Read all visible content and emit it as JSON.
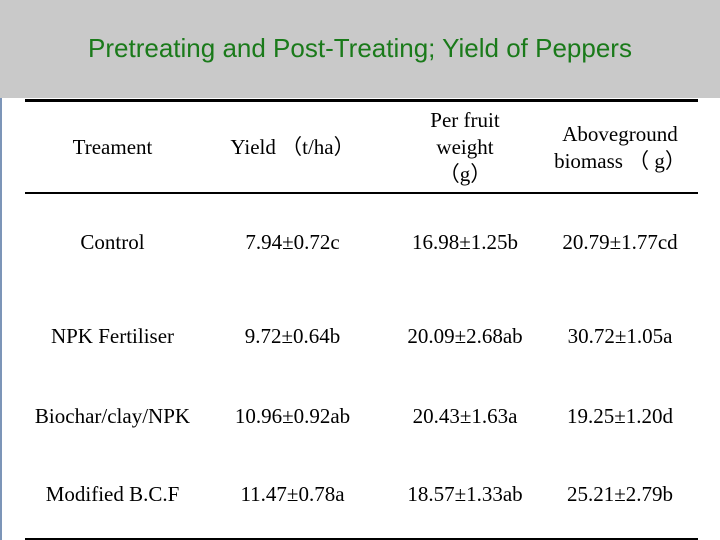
{
  "slide": {
    "title": "Pretreating and Post-Treating; Yield of Peppers"
  },
  "table": {
    "headers": [
      "Treament",
      "Yield （t/ha）",
      "Per fruit weight （g）",
      "Aboveground biomass （ g）"
    ],
    "rows": [
      [
        "Control",
        "7.94±0.72c",
        "16.98±1.25b",
        "20.79±1.77cd"
      ],
      [
        "NPK Fertiliser",
        "9.72±0.64b",
        "20.09±2.68ab",
        "30.72±1.05a"
      ],
      [
        "Biochar/clay/NPK",
        "10.96±0.92ab",
        "20.43±1.63a",
        "19.25±1.20d"
      ],
      [
        "Modified B.C.F",
        "11.47±0.78a",
        "18.57±1.33ab",
        "25.21±2.79b"
      ]
    ]
  }
}
